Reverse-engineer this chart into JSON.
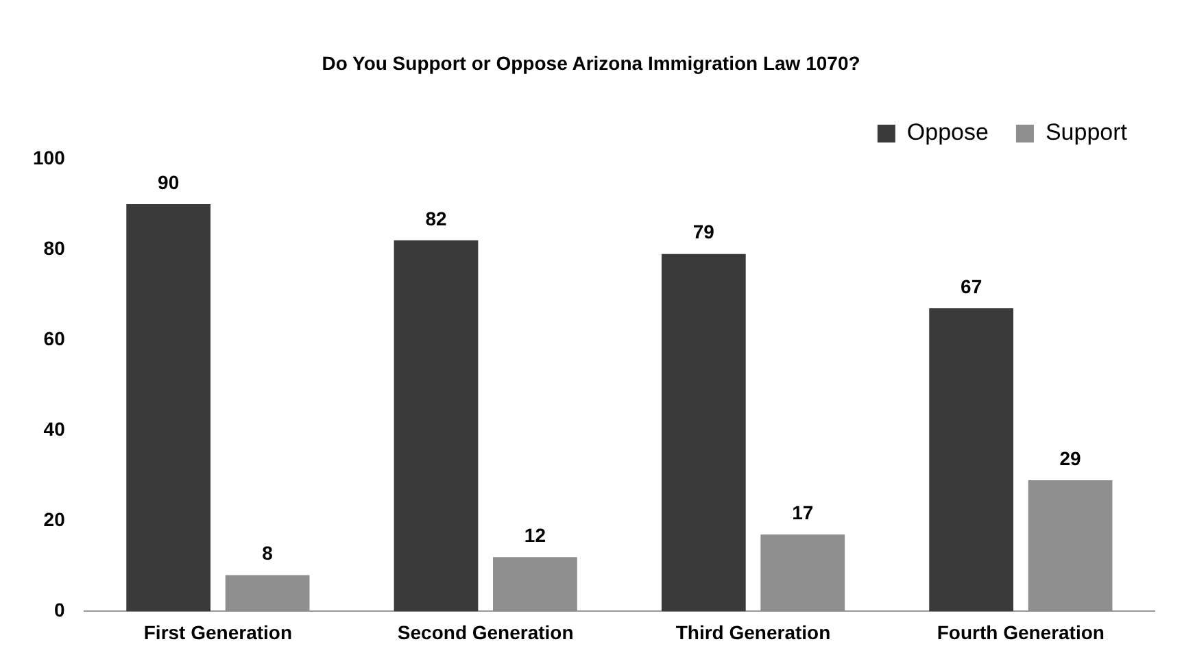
{
  "chart_data": {
    "type": "bar",
    "title": "Do You Support or Oppose Arizona Immigration Law 1070?",
    "categories": [
      "First Generation",
      "Second Generation",
      "Third Generation",
      "Fourth Generation"
    ],
    "series": [
      {
        "name": "Oppose",
        "color": "#3a3a3a",
        "values": [
          90,
          82,
          79,
          67
        ]
      },
      {
        "name": "Support",
        "color": "#8f8f8f",
        "values": [
          8,
          12,
          17,
          29
        ]
      }
    ],
    "ylim": [
      0,
      100
    ],
    "yticks": [
      0,
      20,
      40,
      60,
      80,
      100
    ],
    "grid": false,
    "legend": "top right",
    "data_labels": true
  }
}
